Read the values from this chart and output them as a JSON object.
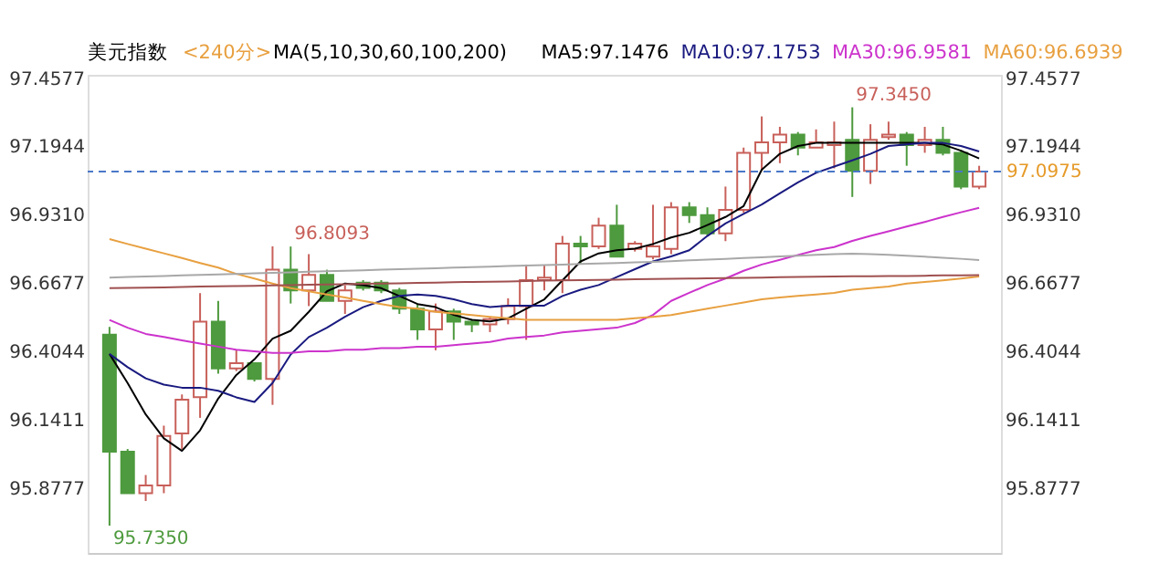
{
  "chart_data": {
    "type": "candlestick",
    "title": "美元指数",
    "subtitle": "<240分>",
    "annotations": [
      "MA(5,10,30,60,100,200)",
      "96.8093",
      "97.3450",
      "95.7350"
    ],
    "categories": [
      null,
      null,
      null,
      null,
      null,
      null,
      null,
      null,
      null,
      null,
      null,
      null,
      null,
      null,
      null,
      null,
      null,
      null,
      null,
      null,
      null,
      null,
      null,
      null,
      null,
      null,
      null,
      null,
      null,
      null,
      null,
      null,
      null,
      null,
      null,
      null,
      null,
      null,
      null,
      null,
      null,
      null,
      null,
      null,
      null,
      null,
      null,
      null,
      null
    ],
    "ohlc": [
      [
        96.47,
        96.5,
        95.735,
        96.02
      ],
      [
        96.02,
        96.03,
        95.86,
        95.86
      ],
      [
        95.86,
        95.93,
        95.83,
        95.89
      ],
      [
        95.89,
        96.12,
        95.86,
        96.08
      ],
      [
        96.09,
        96.24,
        96.03,
        96.22
      ],
      [
        96.23,
        96.63,
        96.15,
        96.52
      ],
      [
        96.52,
        96.6,
        96.32,
        96.34
      ],
      [
        96.34,
        96.41,
        96.33,
        96.36
      ],
      [
        96.36,
        96.36,
        96.29,
        96.3
      ],
      [
        96.3,
        96.81,
        96.2,
        96.72
      ],
      [
        96.72,
        96.8093,
        96.59,
        96.64
      ],
      [
        96.64,
        96.78,
        96.58,
        96.7
      ],
      [
        96.7,
        96.72,
        96.6,
        96.6
      ],
      [
        96.6,
        96.66,
        96.55,
        96.64
      ],
      [
        96.67,
        96.68,
        96.64,
        96.65
      ],
      [
        96.67,
        96.68,
        96.63,
        96.64
      ],
      [
        96.64,
        96.65,
        96.55,
        96.57
      ],
      [
        96.57,
        96.59,
        96.45,
        96.49
      ],
      [
        96.49,
        96.59,
        96.41,
        96.56
      ],
      [
        96.56,
        96.57,
        96.45,
        96.52
      ],
      [
        96.52,
        96.53,
        96.48,
        96.51
      ],
      [
        96.51,
        96.54,
        96.48,
        96.53
      ],
      [
        96.53,
        96.61,
        96.51,
        96.58
      ],
      [
        96.58,
        96.74,
        96.45,
        96.68
      ],
      [
        96.68,
        96.74,
        96.64,
        96.69
      ],
      [
        96.68,
        96.85,
        96.63,
        96.82
      ],
      [
        96.82,
        96.85,
        96.74,
        96.81
      ],
      [
        96.81,
        96.92,
        96.8,
        96.89
      ],
      [
        96.89,
        96.97,
        96.77,
        96.77
      ],
      [
        96.8,
        96.83,
        96.79,
        96.82
      ],
      [
        96.77,
        96.97,
        96.76,
        96.81
      ],
      [
        96.8,
        96.98,
        96.78,
        96.96
      ],
      [
        96.96,
        96.98,
        96.9,
        96.93
      ],
      [
        96.93,
        96.96,
        96.85,
        96.86
      ],
      [
        96.86,
        97.04,
        96.83,
        96.95
      ],
      [
        96.95,
        97.19,
        96.94,
        97.17
      ],
      [
        97.17,
        97.31,
        97.1,
        97.21
      ],
      [
        97.21,
        97.27,
        97.13,
        97.24
      ],
      [
        97.24,
        97.25,
        97.16,
        97.19
      ],
      [
        97.19,
        97.26,
        97.19,
        97.21
      ],
      [
        97.2,
        97.29,
        97.11,
        97.21
      ],
      [
        97.22,
        97.345,
        97.0,
        97.1
      ],
      [
        97.1,
        97.28,
        97.05,
        97.22
      ],
      [
        97.23,
        97.29,
        97.22,
        97.24
      ],
      [
        97.24,
        97.25,
        97.12,
        97.2
      ],
      [
        97.2,
        97.27,
        97.17,
        97.22
      ],
      [
        97.22,
        97.27,
        97.16,
        97.17
      ],
      [
        97.17,
        97.18,
        97.03,
        97.04
      ],
      [
        97.04,
        97.12,
        97.03,
        97.0975
      ]
    ],
    "colors": [
      "#4e9a3e",
      "#4e9a3e",
      "#c8605a",
      "#c8605a",
      "#c8605a",
      "#c8605a",
      "#4e9a3e",
      "#c8605a",
      "#4e9a3e",
      "#c8605a",
      "#4e9a3e",
      "#c8605a",
      "#4e9a3e",
      "#c8605a",
      "#4e9a3e",
      "#4e9a3e",
      "#4e9a3e",
      "#4e9a3e",
      "#c8605a",
      "#4e9a3e",
      "#4e9a3e",
      "#c8605a",
      "#c8605a",
      "#c8605a",
      "#c8605a",
      "#c8605a",
      "#4e9a3e",
      "#c8605a",
      "#4e9a3e",
      "#c8605a",
      "#c8605a",
      "#c8605a",
      "#4e9a3e",
      "#4e9a3e",
      "#c8605a",
      "#c8605a",
      "#c8605a",
      "#c8605a",
      "#4e9a3e",
      "#c8605a",
      "#c8605a",
      "#4e9a3e",
      "#c8605a",
      "#c8605a",
      "#4e9a3e",
      "#c8605a",
      "#4e9a3e",
      "#4e9a3e",
      "#c8605a"
    ],
    "series": [
      {
        "type": "line",
        "name": "MA5:97.1476",
        "color": "#000000",
        "values": [
          96.396,
          96.284,
          96.163,
          96.071,
          96.023,
          96.102,
          96.224,
          96.315,
          96.375,
          96.455,
          96.485,
          96.558,
          96.637,
          96.667,
          96.661,
          96.649,
          96.619,
          96.588,
          96.576,
          96.546,
          96.527,
          96.521,
          96.533,
          96.57,
          96.606,
          96.679,
          96.752,
          96.783,
          96.795,
          96.801,
          96.819,
          96.844,
          96.862,
          96.892,
          96.923,
          96.965,
          97.105,
          97.166,
          97.196,
          97.208,
          97.208,
          97.208,
          97.208,
          97.208,
          97.208,
          97.208,
          97.202,
          97.178,
          97.148
        ]
      },
      {
        "type": "line",
        "name": "MA10:97.1753",
        "color": "#1a1a80",
        "values": [
          96.396,
          96.345,
          96.302,
          96.278,
          96.266,
          96.266,
          96.254,
          96.229,
          96.211,
          96.284,
          96.394,
          96.461,
          96.497,
          96.539,
          96.576,
          96.6,
          96.619,
          96.625,
          96.619,
          96.606,
          96.588,
          96.576,
          96.582,
          96.582,
          96.582,
          96.619,
          96.643,
          96.661,
          96.692,
          96.722,
          96.752,
          96.771,
          96.795,
          96.85,
          96.898,
          96.935,
          96.971,
          97.014,
          97.056,
          97.093,
          97.117,
          97.141,
          97.166,
          97.196,
          97.202,
          97.208,
          97.208,
          97.196,
          97.175
        ]
      },
      {
        "type": "line",
        "name": "MA30:96.9581",
        "color": "#cc33cc",
        "values": [
          96.527,
          96.497,
          96.473,
          96.461,
          96.448,
          96.436,
          96.424,
          96.412,
          96.406,
          96.4,
          96.4,
          96.406,
          96.406,
          96.412,
          96.412,
          96.418,
          96.418,
          96.424,
          96.424,
          96.43,
          96.436,
          96.442,
          96.455,
          96.461,
          96.467,
          96.479,
          96.485,
          96.491,
          96.497,
          96.515,
          96.546,
          96.6,
          96.631,
          96.661,
          96.686,
          96.716,
          96.74,
          96.758,
          96.777,
          96.795,
          96.807,
          96.831,
          96.85,
          96.868,
          96.886,
          96.904,
          96.923,
          96.941,
          96.958
        ]
      },
      {
        "type": "line",
        "name": "MA60:96.6939",
        "color": "#e8a040",
        "values": [
          96.838,
          96.819,
          96.801,
          96.783,
          96.765,
          96.746,
          96.728,
          96.704,
          96.686,
          96.667,
          96.649,
          96.637,
          96.625,
          96.613,
          96.6,
          96.588,
          96.576,
          96.57,
          96.558,
          96.552,
          96.546,
          96.539,
          96.533,
          96.527,
          96.527,
          96.527,
          96.527,
          96.527,
          96.527,
          96.533,
          96.539,
          96.546,
          96.558,
          96.57,
          96.582,
          96.594,
          96.606,
          96.613,
          96.619,
          96.625,
          96.631,
          96.643,
          96.649,
          96.655,
          96.667,
          96.673,
          96.679,
          96.686,
          96.694
        ]
      },
      {
        "type": "line",
        "color": "#a8a8a8",
        "values": [
          96.69,
          96.692,
          96.694,
          96.696,
          96.698,
          96.7,
          96.702,
          96.704,
          96.706,
          96.708,
          96.71,
          96.712,
          96.714,
          96.716,
          96.718,
          96.72,
          96.722,
          96.724,
          96.726,
          96.728,
          96.73,
          96.732,
          96.734,
          96.736,
          96.738,
          96.74,
          96.742,
          96.744,
          96.746,
          96.748,
          96.75,
          96.753,
          96.756,
          96.759,
          96.762,
          96.765,
          96.768,
          96.771,
          96.774,
          96.777,
          96.78,
          96.782,
          96.78,
          96.777,
          96.774,
          96.77,
          96.766,
          96.762,
          96.757
        ]
      },
      {
        "type": "line",
        "color": "#a05050",
        "values": [
          96.649,
          96.65,
          96.651,
          96.652,
          96.654,
          96.655,
          96.656,
          96.657,
          96.658,
          96.66,
          96.661,
          96.662,
          96.663,
          96.664,
          96.666,
          96.667,
          96.668,
          96.669,
          96.67,
          96.672,
          96.673,
          96.674,
          96.675,
          96.676,
          96.678,
          96.679,
          96.68,
          96.681,
          96.682,
          96.683,
          96.684,
          96.685,
          96.686,
          96.687,
          96.688,
          96.689,
          96.69,
          96.691,
          96.692,
          96.693,
          96.694,
          96.695,
          96.695,
          96.696,
          96.696,
          96.697,
          96.698,
          96.698,
          96.699
        ]
      }
    ],
    "ylim": [
      95.63,
      97.47
    ],
    "yticks": [
      95.8777,
      96.1411,
      96.4044,
      96.6677,
      {
        "value": 96.931,
        "label": "96.9310"
      },
      97.1944,
      97.4577
    ],
    "y2lim": [
      95.63,
      97.47
    ],
    "y2ticks": [
      95.8777,
      96.1411,
      96.4044,
      96.6677,
      {
        "value": 96.931,
        "label": "96.9310"
      },
      97.1944,
      97.4577
    ],
    "ref_lines": [
      {
        "axis": "y",
        "value": 97.0975,
        "label": "97.0975",
        "color": "#4a78c8",
        "line_style": "dashed"
      }
    ],
    "tick_labels": "y",
    "grid": false,
    "legend": "top",
    "line_style": "solid",
    "marker": "none"
  }
}
